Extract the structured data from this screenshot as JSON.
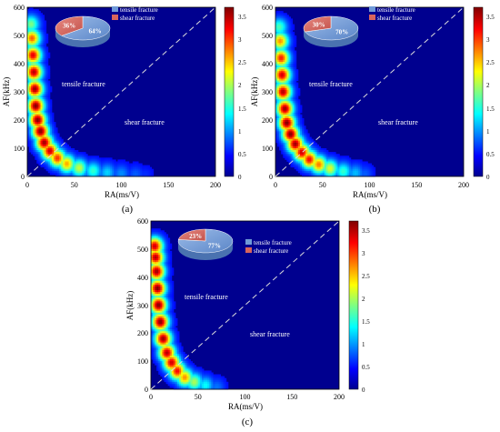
{
  "figure": {
    "panels": [
      {
        "panel_label": "(a)",
        "plot_label": "heatmap-panel-a",
        "xlabel": "RA(ms/V)",
        "ylabel": "AF(kHz)",
        "tensile_text": "tensile fracture",
        "shear_text": "shear fracture",
        "x_ticks": [
          "0",
          "50",
          "100",
          "150",
          "200"
        ],
        "y_ticks": [
          "0",
          "100",
          "200",
          "300",
          "400",
          "500",
          "600"
        ],
        "colorbar_ticks": [
          "0",
          "0.5",
          "1",
          "1.5",
          "2",
          "2.5",
          "3",
          "3.5"
        ],
        "pie": {
          "tensile_pct_label": "64%",
          "shear_pct_label": "36%",
          "legend_tensile": "tensile fracture",
          "legend_shear": "shear fracture"
        }
      },
      {
        "panel_label": "(b)",
        "plot_label": "heatmap-panel-b",
        "xlabel": "RA(ms/V)",
        "ylabel": "AF(kHz)",
        "tensile_text": "tensile fracture",
        "shear_text": "shear fracture",
        "x_ticks": [
          "0",
          "50",
          "100",
          "150",
          "200"
        ],
        "y_ticks": [
          "0",
          "100",
          "200",
          "300",
          "400",
          "500",
          "600"
        ],
        "colorbar_ticks": [
          "0",
          "0.5",
          "1",
          "1.5",
          "2",
          "2.5",
          "3",
          "3.5"
        ],
        "pie": {
          "tensile_pct_label": "70%",
          "shear_pct_label": "30%",
          "legend_tensile": "tensile fracture",
          "legend_shear": "shear fracture"
        }
      },
      {
        "panel_label": "(c)",
        "plot_label": "heatmap-panel-c",
        "xlabel": "RA(ms/V)",
        "ylabel": "AF(kHz)",
        "tensile_text": "tensile fracture",
        "shear_text": "shear fracture",
        "x_ticks": [
          "0",
          "50",
          "100",
          "150",
          "200"
        ],
        "y_ticks": [
          "0",
          "100",
          "200",
          "300",
          "400",
          "500",
          "600"
        ],
        "colorbar_ticks": [
          "0",
          "0.5",
          "1",
          "1.5",
          "2",
          "2.5",
          "3",
          "3.5"
        ],
        "pie": {
          "tensile_pct_label": "77%",
          "shear_pct_label": "23%",
          "legend_tensile": "tensile fracture",
          "legend_shear": "shear fracture"
        }
      }
    ]
  },
  "colors": {
    "background_low": "#00008f",
    "tensile": "#6f9ad8",
    "shear": "#d8645c",
    "divider_line": "#dcdcdc"
  },
  "chart_data": [
    {
      "type": "heatmap",
      "panel": "(a)",
      "xlabel": "RA(ms/V)",
      "ylabel": "AF(kHz)",
      "xlim": [
        0,
        200
      ],
      "ylim": [
        0,
        600
      ],
      "clim": [
        0,
        3.7
      ],
      "divider_line": {
        "from": [
          0,
          0
        ],
        "to": [
          200,
          600
        ]
      },
      "ridge": [
        [
          4,
          540,
          1.6
        ],
        [
          5,
          490,
          2.8
        ],
        [
          6,
          430,
          3.3
        ],
        [
          7,
          370,
          3.5
        ],
        [
          8,
          310,
          3.6
        ],
        [
          9,
          250,
          3.7
        ],
        [
          11,
          200,
          3.7
        ],
        [
          14,
          160,
          3.7
        ],
        [
          18,
          120,
          3.6
        ],
        [
          24,
          90,
          3.4
        ],
        [
          32,
          65,
          3.0
        ],
        [
          42,
          45,
          2.5
        ],
        [
          55,
          30,
          1.9
        ],
        [
          70,
          20,
          1.3
        ],
        [
          85,
          14,
          0.9
        ],
        [
          100,
          10,
          0.6
        ],
        [
          115,
          7,
          0.4
        ],
        [
          125,
          5,
          0.2
        ]
      ],
      "shear_pie_pct": 36,
      "tensile_pie_pct": 64
    },
    {
      "type": "heatmap",
      "panel": "(b)",
      "xlabel": "RA(ms/V)",
      "ylabel": "AF(kHz)",
      "xlim": [
        0,
        200
      ],
      "ylim": [
        0,
        600
      ],
      "clim": [
        0,
        3.7
      ],
      "divider_line": {
        "from": [
          0,
          0
        ],
        "to": [
          200,
          600
        ]
      },
      "ridge": [
        [
          4,
          530,
          1.4
        ],
        [
          5,
          480,
          2.6
        ],
        [
          6,
          420,
          3.1
        ],
        [
          7,
          360,
          3.4
        ],
        [
          8,
          300,
          3.5
        ],
        [
          10,
          240,
          3.6
        ],
        [
          12,
          190,
          3.7
        ],
        [
          16,
          150,
          3.7
        ],
        [
          21,
          115,
          3.6
        ],
        [
          28,
          85,
          3.4
        ],
        [
          36,
          60,
          3.2
        ],
        [
          46,
          42,
          2.7
        ],
        [
          58,
          28,
          2.0
        ],
        [
          72,
          18,
          1.3
        ],
        [
          85,
          12,
          0.8
        ],
        [
          95,
          8,
          0.4
        ]
      ],
      "shear_pie_pct": 30,
      "tensile_pie_pct": 70
    },
    {
      "type": "heatmap",
      "panel": "(c)",
      "xlabel": "RA(ms/V)",
      "ylabel": "AF(kHz)",
      "xlim": [
        0,
        200
      ],
      "ylim": [
        0,
        600
      ],
      "clim": [
        0,
        3.7
      ],
      "divider_line": {
        "from": [
          0,
          0
        ],
        "to": [
          200,
          600
        ]
      },
      "ridge": [
        [
          4,
          510,
          3.4
        ],
        [
          5,
          470,
          3.5
        ],
        [
          6,
          420,
          3.6
        ],
        [
          7,
          360,
          3.7
        ],
        [
          8,
          300,
          3.7
        ],
        [
          10,
          240,
          3.7
        ],
        [
          13,
          180,
          3.6
        ],
        [
          17,
          130,
          3.5
        ],
        [
          22,
          95,
          3.4
        ],
        [
          28,
          65,
          3.2
        ],
        [
          36,
          42,
          2.6
        ],
        [
          46,
          26,
          1.8
        ],
        [
          58,
          14,
          1.1
        ],
        [
          70,
          7,
          0.5
        ]
      ],
      "shear_pie_pct": 23,
      "tensile_pie_pct": 77
    }
  ]
}
